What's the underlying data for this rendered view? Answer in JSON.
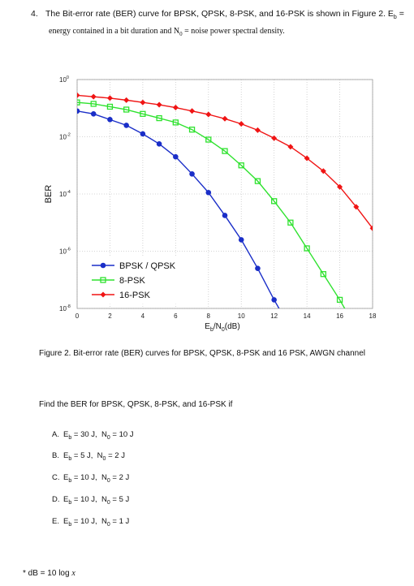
{
  "question": {
    "number": "4.",
    "text": "The Bit-error rate (BER) curve for BPSK, QPSK, 8-PSK, and 16-PSK is shown in Figure 2. E",
    "tail": " =",
    "subline": "energy contained in a bit duration  and  N",
    "subline_tail": " = noise power spectral density."
  },
  "caption": "Figure 2. Bit-error rate (BER) curves for BPSK, QPSK, 8-PSK and 16 PSK, AWGN channel",
  "find_text": "Find the BER for BPSK, QPSK, 8-PSK, and 16-PSK if",
  "options": [
    {
      "letter": "A.",
      "eb": "30",
      "n0": "10"
    },
    {
      "letter": "B.",
      "eb": "5",
      "n0": "2"
    },
    {
      "letter": "C.",
      "eb": "10",
      "n0": "2"
    },
    {
      "letter": "D.",
      "eb": "10",
      "n0": "5"
    },
    {
      "letter": "E.",
      "eb": "10",
      "n0": "1"
    }
  ],
  "note": "* dB = 10 log",
  "chart_data": {
    "type": "line",
    "xlabel": "E_b/N_0(dB)",
    "ylabel": "BER",
    "xlim": [
      0,
      18
    ],
    "ylim_log10": [
      -8,
      0
    ],
    "x_ticks": [
      "0",
      "2",
      "4",
      "6",
      "8",
      "10",
      "12",
      "14",
      "16",
      "18"
    ],
    "y_ticks": [
      {
        "base": "10",
        "exp": "0",
        "value": 0
      },
      {
        "base": "10",
        "exp": "-2",
        "value": -2
      },
      {
        "base": "10",
        "exp": "-4",
        "value": -4
      },
      {
        "base": "10",
        "exp": "-6",
        "value": -6
      },
      {
        "base": "10",
        "exp": "-8",
        "value": -8
      }
    ],
    "grid": true,
    "legend_position": "bottom-left",
    "series": [
      {
        "name": "BPSK / QPSK",
        "color": "#1a2ec8",
        "marker": "circle",
        "x": [
          0,
          1,
          2,
          3,
          4,
          5,
          6,
          7,
          8,
          9,
          10,
          11,
          12,
          12.3
        ],
        "log10y": [
          -1.1,
          -1.2,
          -1.4,
          -1.6,
          -1.9,
          -2.25,
          -2.7,
          -3.3,
          -3.95,
          -4.75,
          -5.6,
          -6.6,
          -7.7,
          -8
        ]
      },
      {
        "name": "8-PSK",
        "color": "#2ee22e",
        "marker": "square",
        "x": [
          0,
          1,
          2,
          3,
          4,
          5,
          6,
          7,
          8,
          9,
          10,
          11,
          12,
          13,
          14,
          15,
          16,
          16.3
        ],
        "log10y": [
          -0.8,
          -0.85,
          -0.95,
          -1.05,
          -1.2,
          -1.35,
          -1.5,
          -1.75,
          -2.1,
          -2.5,
          -3.0,
          -3.55,
          -4.25,
          -5.0,
          -5.9,
          -6.8,
          -7.7,
          -8
        ]
      },
      {
        "name": "16-PSK",
        "color": "#f01414",
        "marker": "diamond",
        "x": [
          0,
          1,
          2,
          3,
          4,
          5,
          6,
          7,
          8,
          9,
          10,
          11,
          12,
          13,
          14,
          15,
          16,
          17,
          18
        ],
        "log10y": [
          -0.55,
          -0.6,
          -0.65,
          -0.72,
          -0.8,
          -0.88,
          -0.98,
          -1.1,
          -1.22,
          -1.37,
          -1.55,
          -1.77,
          -2.05,
          -2.35,
          -2.75,
          -3.2,
          -3.75,
          -4.45,
          -5.2
        ]
      }
    ]
  }
}
